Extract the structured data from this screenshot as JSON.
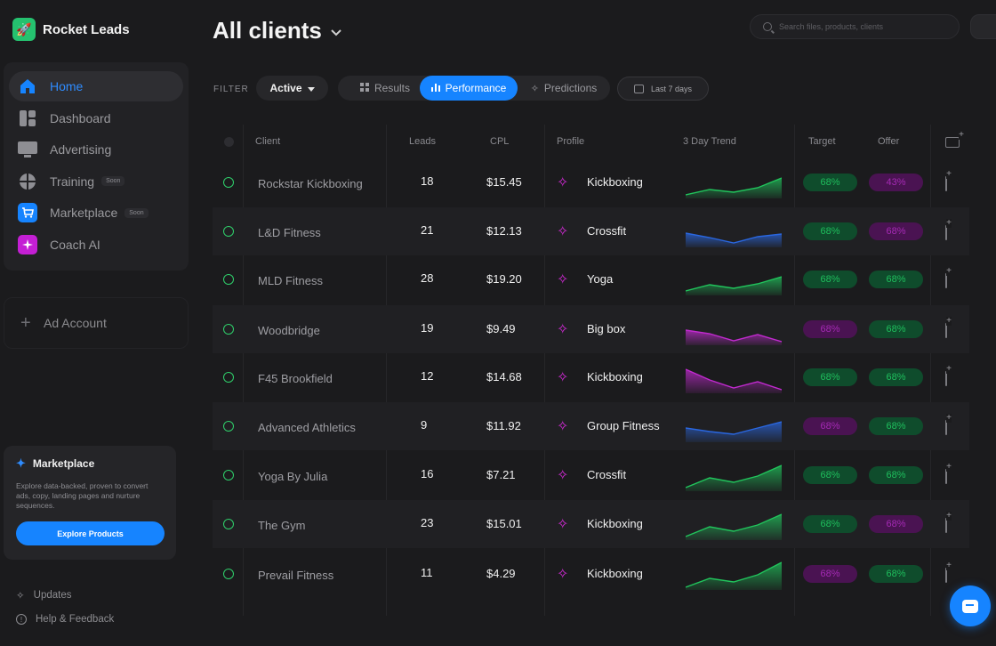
{
  "brand": {
    "name": "Rocket Leads",
    "logo_icon": "rocket-icon"
  },
  "sidebar": {
    "items": [
      {
        "label": "Home",
        "icon": "home-icon",
        "active": true,
        "badge": ""
      },
      {
        "label": "Dashboard",
        "icon": "dashboard-icon",
        "active": false,
        "badge": ""
      },
      {
        "label": "Advertising",
        "icon": "monitor-icon",
        "active": false,
        "badge": ""
      },
      {
        "label": "Training",
        "icon": "training-icon",
        "active": false,
        "badge": "Soon"
      },
      {
        "label": "Marketplace",
        "icon": "cart-icon",
        "active": false,
        "badge": "Soon"
      },
      {
        "label": "Coach AI",
        "icon": "sparkle-icon",
        "active": false,
        "badge": ""
      }
    ],
    "ad_account_label": "Ad Account",
    "promo": {
      "title": "Marketplace",
      "description": "Explore data-backed, proven to convert ads, copy, landing pages and nurture sequences.",
      "button_label": "Explore Products"
    },
    "footer": {
      "updates_label": "Updates",
      "help_label": "Help & Feedback"
    }
  },
  "header": {
    "title": "All clients",
    "search_placeholder": "Search files, products, clients"
  },
  "filters": {
    "label": "FILTER",
    "status_value": "Active",
    "views": [
      "Results",
      "Performance",
      "Predictions"
    ],
    "active_view": "Performance",
    "date_range": "Last 7 days"
  },
  "table": {
    "columns": [
      "Client",
      "Leads",
      "CPL",
      "Profile",
      "3 Day Trend",
      "Target",
      "Offer"
    ],
    "rows": [
      {
        "client": "Rockstar Kickboxing",
        "leads": "18",
        "cpl": "$15.45",
        "profile": "Kickboxing",
        "trend": [
          3,
          9,
          6,
          11,
          22
        ],
        "trend_color": "green",
        "target": "68%",
        "target_color": "green",
        "offer": "43%",
        "offer_color": "purple"
      },
      {
        "client": "L&D Fitness",
        "leads": "21",
        "cpl": "$12.13",
        "profile": "Crossfit",
        "trend": [
          15,
          10,
          4,
          11,
          14
        ],
        "trend_color": "blue",
        "target": "68%",
        "target_color": "green",
        "offer": "68%",
        "offer_color": "purple"
      },
      {
        "client": "MLD Fitness",
        "leads": "28",
        "cpl": "$19.20",
        "profile": "Yoga",
        "trend": [
          4,
          11,
          7,
          12,
          20
        ],
        "trend_color": "green",
        "target": "68%",
        "target_color": "green",
        "offer": "68%",
        "offer_color": "green"
      },
      {
        "client": "Woodbridge",
        "leads": "19",
        "cpl": "$9.49",
        "profile": "Big box",
        "trend": [
          16,
          12,
          4,
          11,
          3
        ],
        "trend_color": "purple",
        "target": "68%",
        "target_color": "purple",
        "offer": "68%",
        "offer_color": "green"
      },
      {
        "client": "F45 Brookfield",
        "leads": "12",
        "cpl": "$14.68",
        "profile": "Kickboxing",
        "trend": [
          26,
          14,
          5,
          12,
          3
        ],
        "trend_color": "purple",
        "target": "68%",
        "target_color": "green",
        "offer": "68%",
        "offer_color": "green"
      },
      {
        "client": "Advanced Athletics",
        "leads": "9",
        "cpl": "$11.92",
        "profile": "Group Fitness",
        "trend": [
          15,
          11,
          8,
          15,
          22
        ],
        "trend_color": "blue",
        "target": "68%",
        "target_color": "purple",
        "offer": "68%",
        "offer_color": "green"
      },
      {
        "client": "Yoga By Julia",
        "leads": "16",
        "cpl": "$7.21",
        "profile": "Crossfit",
        "trend": [
          3,
          14,
          9,
          16,
          28
        ],
        "trend_color": "green",
        "target": "68%",
        "target_color": "green",
        "offer": "68%",
        "offer_color": "green"
      },
      {
        "client": "The Gym",
        "leads": "23",
        "cpl": "$15.01",
        "profile": "Kickboxing",
        "trend": [
          3,
          14,
          9,
          16,
          28
        ],
        "trend_color": "green",
        "target": "68%",
        "target_color": "green",
        "offer": "68%",
        "offer_color": "purple"
      },
      {
        "client": "Prevail Fitness",
        "leads": "11",
        "cpl": "$4.29",
        "profile": "Kickboxing",
        "trend": [
          2,
          12,
          8,
          16,
          30
        ],
        "trend_color": "green",
        "target": "68%",
        "target_color": "purple",
        "offer": "68%",
        "offer_color": "green"
      }
    ]
  },
  "colors": {
    "accent": "#1684ff",
    "green_line": "#21c45c",
    "blue_line": "#2a67e0",
    "purple_line": "#c22ad0"
  }
}
